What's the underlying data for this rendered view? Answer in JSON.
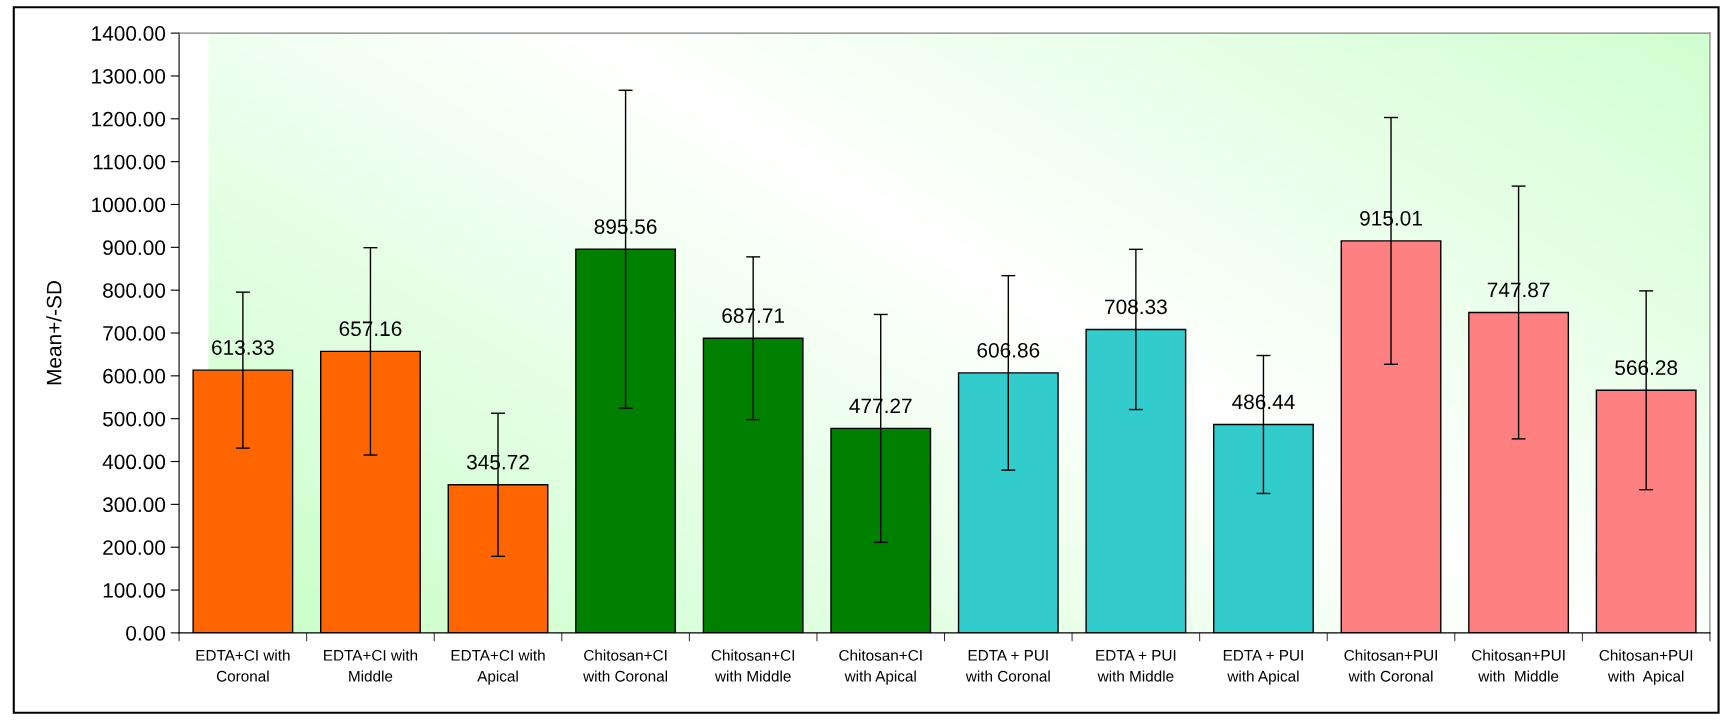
{
  "chart_data": {
    "type": "bar",
    "ylabel": "Mean+/-SD",
    "categories": [
      "EDTA+CI with\nCoronal",
      "EDTA+CI with\nMiddle",
      "EDTA+CI with\nApical",
      "Chitosan+CI\nwith Coronal",
      "Chitosan+CI\nwith Middle",
      "Chitosan+CI\nwith Apical",
      "EDTA + PUI\nwith Coronal",
      "EDTA + PUI\nwith Middle",
      "EDTA + PUI\nwith Apical",
      "Chitosan+PUI\nwith Coronal",
      "Chitosan+PUI\nwith  Middle",
      "Chitosan+PUI\nwith  Apical"
    ],
    "values": [
      613.33,
      657.16,
      345.72,
      895.56,
      687.71,
      477.27,
      606.86,
      708.33,
      486.44,
      915.01,
      747.87,
      566.28
    ],
    "errors": [
      182,
      242,
      167,
      371,
      190,
      266,
      227,
      187,
      161,
      288,
      295,
      232
    ],
    "colors": [
      "#ff6600",
      "#ff6600",
      "#ff6600",
      "#008000",
      "#008000",
      "#008000",
      "#33cccc",
      "#33cccc",
      "#33cccc",
      "#ff8080",
      "#ff8080",
      "#ff8080"
    ],
    "value_labels": [
      "613.33",
      "657.16",
      "345.72",
      "895.56",
      "687.71",
      "477.27",
      "606.86",
      "708.33",
      "486.44",
      "915.01",
      "747.87",
      "566.28"
    ],
    "ylim": [
      0,
      1400
    ],
    "yticks": [
      {
        "value": 0,
        "label": "0.00"
      },
      {
        "value": 100,
        "label": "100.00"
      },
      {
        "value": 200,
        "label": "200.00"
      },
      {
        "value": 300,
        "label": "300.00"
      },
      {
        "value": 400,
        "label": "400.00"
      },
      {
        "value": 500,
        "label": "500.00"
      },
      {
        "value": 600,
        "label": "600.00"
      },
      {
        "value": 700,
        "label": "700.00"
      },
      {
        "value": 800,
        "label": "800.00"
      },
      {
        "value": 900,
        "label": "900.00"
      },
      {
        "value": 1000,
        "label": "1000.00"
      },
      {
        "value": 1100,
        "label": "1100.00"
      },
      {
        "value": 1200,
        "label": "1200.00"
      },
      {
        "value": 1300,
        "label": "1300.00"
      },
      {
        "value": 1400,
        "label": "1400.00"
      }
    ],
    "grid": false,
    "legend": false
  }
}
